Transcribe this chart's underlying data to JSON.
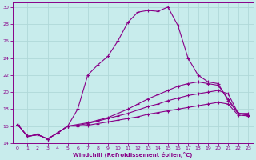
{
  "xlabel": "Windchill (Refroidissement éolien,°C)",
  "background_color": "#c8ecec",
  "grid_color": "#b0d8d8",
  "line_color": "#880088",
  "xlim": [
    -0.5,
    23.5
  ],
  "ylim": [
    14,
    30.5
  ],
  "yticks": [
    14,
    16,
    18,
    20,
    22,
    24,
    26,
    28,
    30
  ],
  "xticks": [
    0,
    1,
    2,
    3,
    4,
    5,
    6,
    7,
    8,
    9,
    10,
    11,
    12,
    13,
    14,
    15,
    16,
    17,
    18,
    19,
    20,
    21,
    22,
    23
  ],
  "line1_x": [
    0,
    1,
    2,
    3,
    4,
    5,
    6,
    7,
    8,
    9,
    10,
    11,
    12,
    13,
    14,
    15,
    16,
    17,
    18,
    19,
    20,
    21,
    22,
    23
  ],
  "line1_y": [
    16.2,
    14.8,
    15.0,
    14.5,
    15.2,
    16.0,
    18.0,
    22.0,
    23.2,
    24.2,
    26.0,
    28.2,
    29.4,
    29.6,
    29.5,
    30.0,
    27.8,
    24.0,
    22.0,
    21.2,
    21.0,
    19.0,
    17.5,
    17.5
  ],
  "line2_x": [
    0,
    1,
    2,
    3,
    4,
    5,
    6,
    7,
    8,
    9,
    10,
    11,
    12,
    13,
    14,
    15,
    16,
    17,
    18,
    19,
    20,
    21,
    22,
    23
  ],
  "line2_y": [
    16.2,
    14.8,
    15.0,
    14.5,
    15.2,
    16.0,
    16.2,
    16.4,
    16.7,
    17.0,
    17.5,
    18.0,
    18.6,
    19.2,
    19.7,
    20.2,
    20.7,
    21.0,
    21.2,
    21.0,
    20.8,
    19.2,
    17.5,
    17.3
  ],
  "line3_x": [
    0,
    1,
    2,
    3,
    4,
    5,
    6,
    7,
    8,
    9,
    10,
    11,
    12,
    13,
    14,
    15,
    16,
    17,
    18,
    19,
    20,
    21,
    22,
    23
  ],
  "line3_y": [
    16.2,
    14.8,
    15.0,
    14.5,
    15.2,
    16.0,
    16.1,
    16.3,
    16.6,
    16.9,
    17.2,
    17.5,
    17.9,
    18.3,
    18.6,
    19.0,
    19.3,
    19.6,
    19.8,
    20.0,
    20.2,
    19.8,
    17.5,
    17.3
  ],
  "line4_x": [
    0,
    1,
    2,
    3,
    4,
    5,
    6,
    7,
    8,
    9,
    10,
    11,
    12,
    13,
    14,
    15,
    16,
    17,
    18,
    19,
    20,
    21,
    22,
    23
  ],
  "line4_y": [
    16.2,
    14.8,
    15.0,
    14.5,
    15.2,
    16.0,
    16.0,
    16.1,
    16.3,
    16.5,
    16.7,
    16.9,
    17.1,
    17.4,
    17.6,
    17.8,
    18.0,
    18.2,
    18.4,
    18.6,
    18.8,
    18.6,
    17.3,
    17.2
  ]
}
